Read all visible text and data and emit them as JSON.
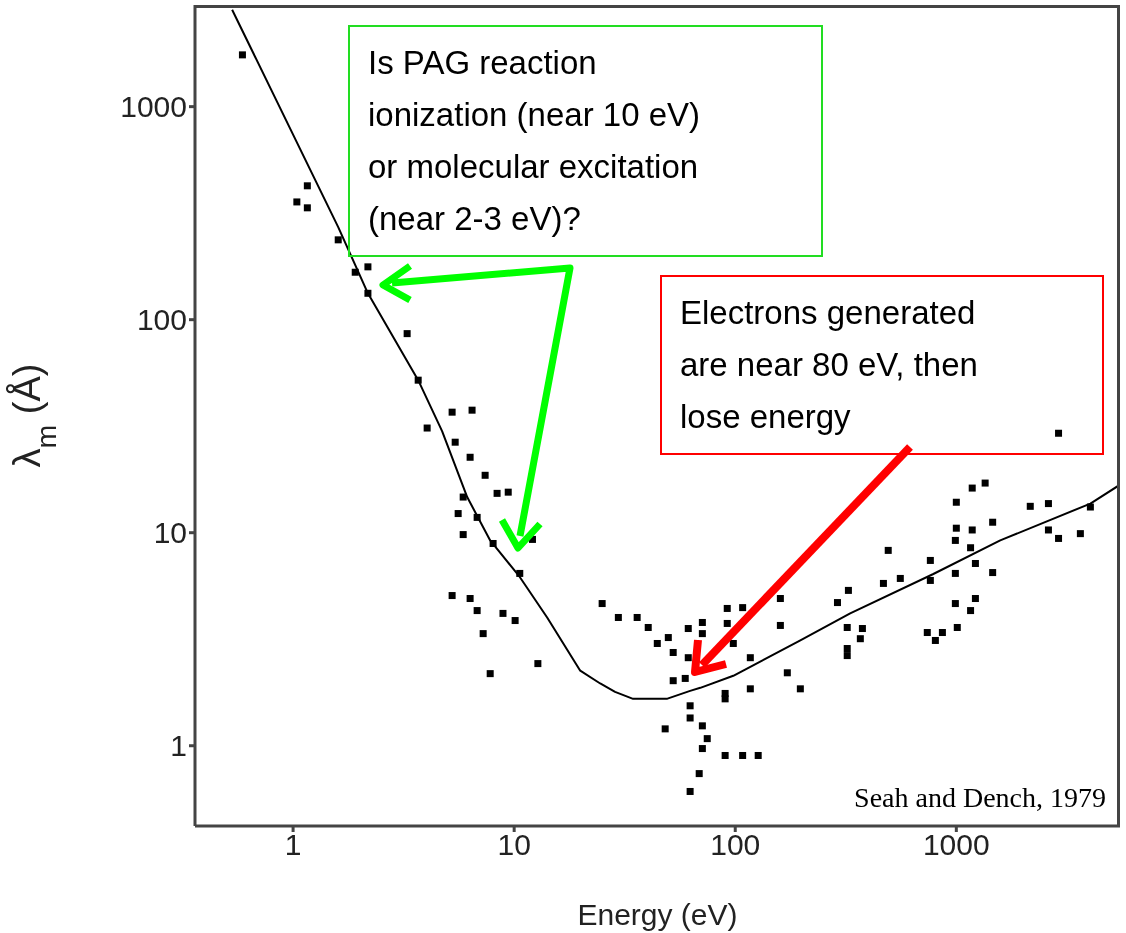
{
  "chart_data": {
    "type": "scatter",
    "xlabel": "Energy (eV)",
    "ylabel": "λ$_{m}$ (Å)",
    "log": "xy",
    "xlim": [
      0.36,
      5500
    ],
    "ylim": [
      0.42,
      3000
    ],
    "xticks": [
      1,
      10,
      100,
      1000
    ],
    "yticks": [
      1,
      10,
      100,
      1000
    ],
    "annotations": [
      "Is PAG reaction\nionization (near 10 eV)\nor molecular excitation\n(near 2-3 eV)?",
      "Electrons generated\nare near 80 eV, then\nlose energy",
      "Seah and Dench, 1979"
    ],
    "series": [
      {
        "type": "scatter",
        "marker": "square",
        "color": "#000000",
        "x": [
          0.59,
          1.16,
          1.04,
          1.16,
          1.6,
          1.91,
          2.18,
          2.18,
          3.28,
          3.68,
          4.04,
          5.24,
          6.45,
          5.41,
          6.32,
          7.39,
          8.37,
          9.4,
          5.88,
          6.8,
          8.03,
          10.6,
          5.58,
          5.88,
          12.1,
          5.24,
          6.32,
          6.8,
          7.24,
          8.9,
          10.1,
          7.79,
          12.8,
          25,
          29.6,
          36,
          40.4,
          44.4,
          49.8,
          52.4,
          61.3,
          71,
          71,
          61.3,
          52.4,
          59.4,
          62.5,
          62.5,
          71,
          48.2,
          74.7,
          71,
          90,
          108,
          127,
          68.7,
          62.5,
          92,
          108,
          92,
          98,
          117,
          117,
          90,
          90,
          160,
          160,
          172,
          197,
          290,
          325,
          321,
          321,
          321,
          376,
          368,
          468,
          558,
          492,
          739,
          804,
          865,
          1010,
          763,
          763,
          990,
          990,
          990,
          1000,
          1000,
          1180,
          1160,
          1220,
          1180,
          1350,
          1460,
          1460,
          1160,
          1220,
          2160,
          2610,
          2610,
          2900,
          3640,
          4040,
          2900
        ],
        "values": [
          1750,
          425,
          357,
          335,
          237,
          167,
          177,
          133,
          86,
          52,
          31,
          36.8,
          37.6,
          26.6,
          22.6,
          18.6,
          15.3,
          15.5,
          14.7,
          11.8,
          8.9,
          6.44,
          12.3,
          9.8,
          9.3,
          5.07,
          4.91,
          4.31,
          3.36,
          4.18,
          3.87,
          2.18,
          2.43,
          4.65,
          4.0,
          4.0,
          3.59,
          3.02,
          3.22,
          2.74,
          3.55,
          3.79,
          3.36,
          2.59,
          2.02,
          2.07,
          1.54,
          1.35,
          1.24,
          1.2,
          1.08,
          0.97,
          0.9,
          0.9,
          0.9,
          0.74,
          0.61,
          4.41,
          4.45,
          3.75,
          3.02,
          2.59,
          1.85,
          1.76,
          1.66,
          4.91,
          3.67,
          2.2,
          1.85,
          4.7,
          5.36,
          3.59,
          2.86,
          2.65,
          3.55,
          3.18,
          5.78,
          6.1,
          8.26,
          3.4,
          3.12,
          3.4,
          3.59,
          7.41,
          5.97,
          9.2,
          6.44,
          4.65,
          10.5,
          13.9,
          10.3,
          8.5,
          7.17,
          16.2,
          17.1,
          11.2,
          6.5,
          4.31,
          4.91,
          13.3,
          13.7,
          10.3,
          9.4,
          9.9,
          13.2,
          29.3
        ]
      },
      {
        "type": "line",
        "marker": "none",
        "color": "#000000",
        "x": [
          0.53,
          1.6,
          2.18,
          3.68,
          4.72,
          6.13,
          7.79,
          10.6,
          14.1,
          19.9,
          24.5,
          28.6,
          34.5,
          49,
          62.5,
          69.5,
          98,
          197,
          331,
          787,
          1580,
          4040,
          5500
        ],
        "values": [
          2850,
          272,
          133,
          52,
          30,
          14.7,
          9.2,
          6.2,
          4.0,
          2.25,
          1.96,
          1.79,
          1.66,
          1.66,
          1.81,
          1.87,
          2.13,
          3.12,
          4.18,
          6.4,
          9.2,
          13.7,
          16.8
        ]
      }
    ]
  }
}
